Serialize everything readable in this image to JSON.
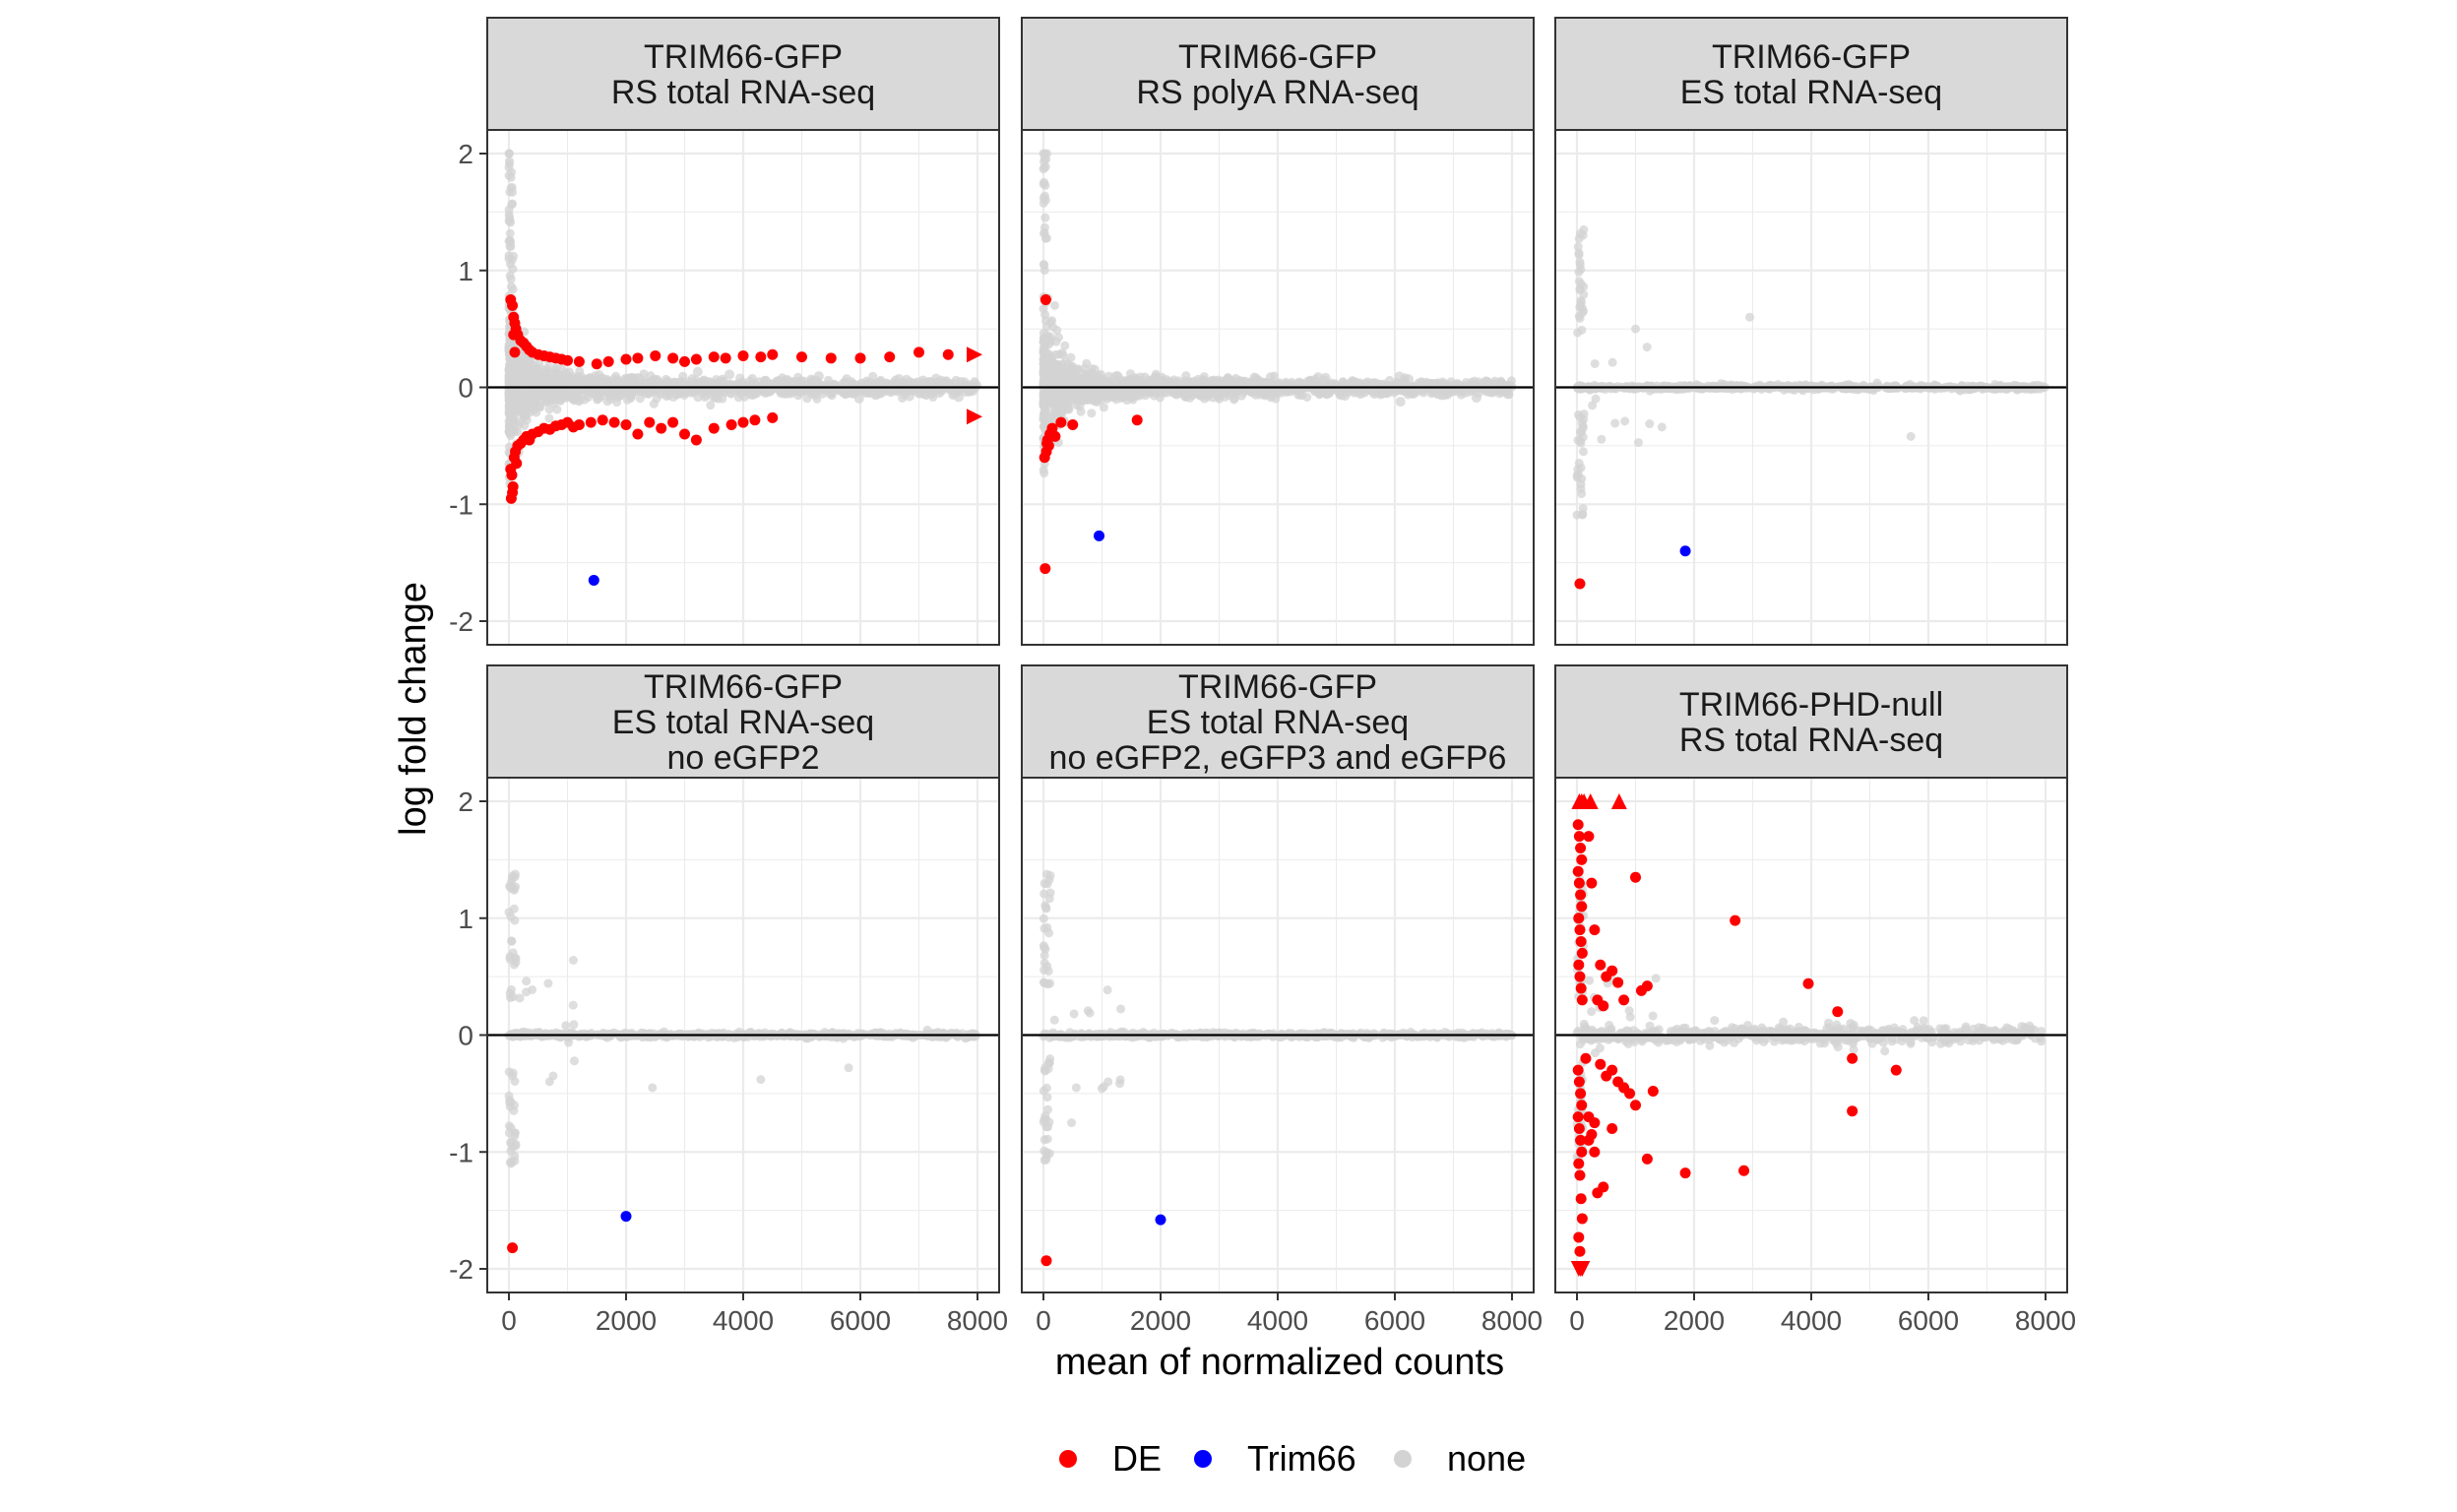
{
  "chart_data": {
    "type": "scatter",
    "layout": "facet-grid 2x3",
    "xlabel": "mean of normalized counts",
    "ylabel": "log fold change",
    "xlim": [
      0,
      8000
    ],
    "ylim": [
      -2,
      2
    ],
    "x_ticks": [
      "0",
      "2000",
      "4000",
      "6000",
      "8000"
    ],
    "y_ticks": [
      "-2",
      "-1",
      "0",
      "1",
      "2"
    ],
    "grid": true,
    "zero_line": 0,
    "legend_position": "bottom",
    "legend": [
      {
        "name": "DE",
        "color": "#ff0000"
      },
      {
        "name": "Trim66",
        "color": "#0000ff"
      },
      {
        "name": "none",
        "color": "#d3d3d3"
      }
    ],
    "panels": [
      {
        "title_lines": [
          "TRIM66-GFP",
          "RS total RNA-seq"
        ],
        "pattern": "dense-funnel",
        "trim66": [
          1450,
          -1.65
        ],
        "de_points": [
          [
            30,
            0.75
          ],
          [
            60,
            0.7
          ],
          [
            80,
            0.6
          ],
          [
            100,
            0.55
          ],
          [
            120,
            0.5
          ],
          [
            150,
            0.45
          ],
          [
            200,
            0.4
          ],
          [
            250,
            0.38
          ],
          [
            300,
            0.35
          ],
          [
            350,
            0.32
          ],
          [
            400,
            0.3
          ],
          [
            500,
            0.28
          ],
          [
            600,
            0.27
          ],
          [
            700,
            0.26
          ],
          [
            800,
            0.25
          ],
          [
            900,
            0.24
          ],
          [
            1000,
            0.23
          ],
          [
            1200,
            0.22
          ],
          [
            1500,
            0.2
          ],
          [
            1700,
            0.22
          ],
          [
            2000,
            0.24
          ],
          [
            2200,
            0.25
          ],
          [
            2500,
            0.27
          ],
          [
            2800,
            0.25
          ],
          [
            3000,
            0.22
          ],
          [
            3200,
            0.24
          ],
          [
            3500,
            0.26
          ],
          [
            3700,
            0.25
          ],
          [
            4000,
            0.27
          ],
          [
            4300,
            0.26
          ],
          [
            4500,
            0.28
          ],
          [
            5000,
            0.26
          ],
          [
            5500,
            0.25
          ],
          [
            6000,
            0.25
          ],
          [
            6500,
            0.26
          ],
          [
            7000,
            0.3
          ],
          [
            7500,
            0.28
          ],
          [
            30,
            -0.7
          ],
          [
            50,
            -0.75
          ],
          [
            70,
            -0.85
          ],
          [
            90,
            -0.6
          ],
          [
            110,
            -0.55
          ],
          [
            150,
            -0.5
          ],
          [
            200,
            -0.48
          ],
          [
            250,
            -0.45
          ],
          [
            300,
            -0.42
          ],
          [
            350,
            -0.45
          ],
          [
            400,
            -0.4
          ],
          [
            500,
            -0.38
          ],
          [
            600,
            -0.35
          ],
          [
            700,
            -0.36
          ],
          [
            800,
            -0.33
          ],
          [
            900,
            -0.32
          ],
          [
            1000,
            -0.3
          ],
          [
            1100,
            -0.34
          ],
          [
            1200,
            -0.32
          ],
          [
            1400,
            -0.3
          ],
          [
            1600,
            -0.28
          ],
          [
            1800,
            -0.3
          ],
          [
            2000,
            -0.32
          ],
          [
            2200,
            -0.4
          ],
          [
            2400,
            -0.3
          ],
          [
            2600,
            -0.35
          ],
          [
            2800,
            -0.3
          ],
          [
            3000,
            -0.4
          ],
          [
            3200,
            -0.45
          ],
          [
            3500,
            -0.35
          ],
          [
            3800,
            -0.32
          ],
          [
            4000,
            -0.3
          ],
          [
            4200,
            -0.28
          ],
          [
            4500,
            -0.26
          ],
          [
            40,
            -0.95
          ],
          [
            60,
            -0.9
          ],
          [
            80,
            0.45
          ],
          [
            100,
            0.3
          ],
          [
            130,
            -0.65
          ]
        ],
        "de_triangles": [
          [
            7950,
            0.28,
            "right"
          ],
          [
            7950,
            -0.25,
            "right"
          ]
        ]
      },
      {
        "title_lines": [
          "TRIM66-GFP",
          "RS polyA RNA-seq"
        ],
        "pattern": "dense-funnel-light",
        "trim66": [
          950,
          -1.27
        ],
        "de_points": [
          [
            30,
            -1.55
          ],
          [
            40,
            0.75
          ],
          [
            50,
            -0.55
          ],
          [
            70,
            -0.45
          ],
          [
            90,
            -0.5
          ],
          [
            110,
            -0.4
          ],
          [
            150,
            -0.35
          ],
          [
            200,
            -0.42
          ],
          [
            300,
            -0.3
          ],
          [
            500,
            -0.32
          ],
          [
            1600,
            -0.28
          ],
          [
            20,
            -0.6
          ],
          [
            60,
            -0.48
          ]
        ],
        "de_triangles": []
      },
      {
        "title_lines": [
          "TRIM66-GFP",
          "ES total RNA-seq"
        ],
        "pattern": "flat",
        "trim66": [
          1850,
          -1.4
        ],
        "de_points": [
          [
            50,
            -1.68
          ]
        ],
        "de_triangles": []
      },
      {
        "title_lines": [
          "TRIM66-GFP",
          "ES total RNA-seq",
          "no eGFP2"
        ],
        "pattern": "flat",
        "trim66": [
          2000,
          -1.55
        ],
        "de_points": [
          [
            60,
            -1.82
          ]
        ],
        "de_triangles": []
      },
      {
        "title_lines": [
          "TRIM66-GFP",
          "ES total RNA-seq",
          "no eGFP2, eGFP3 and eGFP6"
        ],
        "pattern": "flat",
        "trim66": [
          2000,
          -1.58
        ],
        "de_points": [
          [
            50,
            -1.93
          ]
        ],
        "de_triangles": []
      },
      {
        "title_lines": [
          "TRIM66-PHD-null",
          "RS total RNA-seq"
        ],
        "pattern": "flat-noisy",
        "trim66": null,
        "de_points": [
          [
            20,
            1.8
          ],
          [
            40,
            1.7
          ],
          [
            60,
            1.6
          ],
          [
            80,
            1.5
          ],
          [
            20,
            1.4
          ],
          [
            40,
            1.3
          ],
          [
            60,
            1.2
          ],
          [
            80,
            1.1
          ],
          [
            30,
            1.0
          ],
          [
            50,
            0.9
          ],
          [
            70,
            0.8
          ],
          [
            90,
            0.7
          ],
          [
            30,
            0.6
          ],
          [
            50,
            0.5
          ],
          [
            70,
            0.4
          ],
          [
            90,
            0.3
          ],
          [
            200,
            1.7
          ],
          [
            250,
            1.3
          ],
          [
            300,
            0.9
          ],
          [
            400,
            0.6
          ],
          [
            500,
            0.5
          ],
          [
            600,
            0.55
          ],
          [
            700,
            0.45
          ],
          [
            350,
            0.3
          ],
          [
            450,
            0.25
          ],
          [
            800,
            0.3
          ],
          [
            1000,
            1.35
          ],
          [
            1100,
            0.38
          ],
          [
            1200,
            0.42
          ],
          [
            2700,
            0.98
          ],
          [
            3950,
            0.44
          ],
          [
            4450,
            0.2
          ],
          [
            20,
            -0.3
          ],
          [
            40,
            -0.4
          ],
          [
            60,
            -0.5
          ],
          [
            80,
            -0.6
          ],
          [
            20,
            -0.7
          ],
          [
            40,
            -0.8
          ],
          [
            60,
            -0.9
          ],
          [
            80,
            -1.0
          ],
          [
            30,
            -1.1
          ],
          [
            50,
            -1.2
          ],
          [
            70,
            -1.4
          ],
          [
            90,
            -1.57
          ],
          [
            30,
            -1.73
          ],
          [
            50,
            -1.85
          ],
          [
            200,
            -0.9
          ],
          [
            250,
            -0.85
          ],
          [
            300,
            -1.0
          ],
          [
            350,
            -1.35
          ],
          [
            450,
            -1.3
          ],
          [
            400,
            -0.25
          ],
          [
            500,
            -0.35
          ],
          [
            600,
            -0.3
          ],
          [
            700,
            -0.4
          ],
          [
            800,
            -0.45
          ],
          [
            900,
            -0.5
          ],
          [
            1000,
            -0.6
          ],
          [
            1200,
            -1.06
          ],
          [
            1300,
            -0.48
          ],
          [
            1850,
            -1.18
          ],
          [
            2850,
            -1.16
          ],
          [
            4700,
            -0.2
          ],
          [
            4700,
            -0.65
          ],
          [
            5450,
            -0.3
          ],
          [
            200,
            -0.7
          ],
          [
            300,
            -0.75
          ],
          [
            150,
            -0.2
          ],
          [
            600,
            -0.8
          ]
        ],
        "de_triangles": [
          [
            40,
            2.0,
            "up"
          ],
          [
            80,
            2.0,
            "up"
          ],
          [
            120,
            2.0,
            "up"
          ],
          [
            230,
            2.0,
            "up"
          ],
          [
            720,
            2.0,
            "up"
          ],
          [
            30,
            -2.0,
            "down"
          ],
          [
            60,
            -2.0,
            "down"
          ],
          [
            90,
            -2.0,
            "down"
          ]
        ]
      }
    ]
  }
}
